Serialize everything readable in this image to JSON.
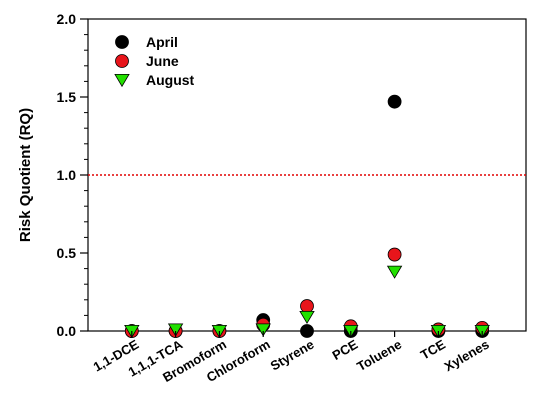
{
  "chart_data": {
    "type": "scatter",
    "title": "",
    "xlabel": "",
    "ylabel": "Risk Quotient (RQ)",
    "categories": [
      "1,1-DCE",
      "1,1,1-TCA",
      "Bromoform",
      "Chloroform",
      "Styrene",
      "PCE",
      "Toluene",
      "TCE",
      "Xylenes"
    ],
    "ylim": [
      0.0,
      2.0
    ],
    "yticks": [
      0.0,
      0.5,
      1.0,
      1.5,
      2.0
    ],
    "ytick_labels": [
      "0.0",
      "0.5",
      "1.0",
      "1.5",
      "2.0"
    ],
    "threshold": {
      "value": 1.0,
      "color": "#e00000",
      "style": "dotted"
    },
    "grid": false,
    "legend_position": "top-left",
    "series": [
      {
        "name": "April",
        "marker": "circle",
        "color": "#000000",
        "values": [
          0.0,
          0.0,
          0.0,
          0.07,
          0.0,
          0.0,
          1.47,
          0.0,
          0.0
        ]
      },
      {
        "name": "June",
        "marker": "circle",
        "color": "#e8151b",
        "values": [
          0.0,
          0.0,
          0.0,
          0.04,
          0.16,
          0.03,
          0.49,
          0.01,
          0.02
        ]
      },
      {
        "name": "August",
        "marker": "triangle-down",
        "color": "#22e000",
        "values": [
          0.0,
          0.01,
          0.0,
          0.01,
          0.09,
          0.0,
          0.38,
          0.0,
          0.0
        ]
      }
    ]
  }
}
